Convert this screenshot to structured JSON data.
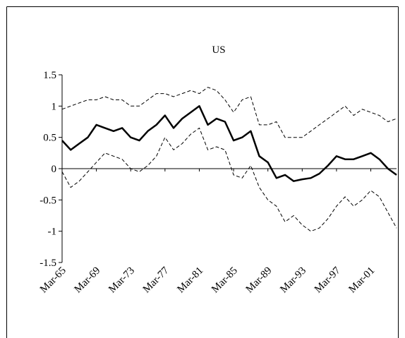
{
  "chart_data": {
    "type": "line",
    "title": "US",
    "categories": [
      "Mar-65",
      null,
      null,
      null,
      "Mar-69",
      null,
      null,
      null,
      "Mar-73",
      null,
      null,
      null,
      "Mar-77",
      null,
      null,
      null,
      "Mar-81",
      null,
      null,
      null,
      "Mar-85",
      null,
      null,
      null,
      "Mar-89",
      null,
      null,
      null,
      "Mar-93",
      null,
      null,
      null,
      "Mar-97",
      null,
      null,
      null,
      "Mar-01",
      null,
      null,
      null
    ],
    "series": [
      {
        "color": "#000000",
        "dash": false,
        "line_width": 2.5,
        "values": [
          0.45,
          0.3,
          0.4,
          0.5,
          0.7,
          0.65,
          0.6,
          0.65,
          0.5,
          0.45,
          0.6,
          0.7,
          0.85,
          0.65,
          0.8,
          0.9,
          1.0,
          0.7,
          0.8,
          0.75,
          0.45,
          0.5,
          0.6,
          0.2,
          0.1,
          -0.15,
          -0.1,
          -0.2,
          -0.17,
          -0.15,
          -0.08,
          0.05,
          0.2,
          0.15,
          0.15,
          0.2,
          0.25,
          0.15,
          0.0,
          -0.1
        ]
      },
      {
        "color": "#000000",
        "dash": true,
        "line_width": 1,
        "values": [
          0.95,
          1.0,
          1.05,
          1.1,
          1.1,
          1.15,
          1.1,
          1.1,
          1.0,
          1.0,
          1.1,
          1.2,
          1.2,
          1.15,
          1.2,
          1.25,
          1.2,
          1.3,
          1.25,
          1.1,
          0.9,
          1.1,
          1.15,
          0.7,
          0.7,
          0.75,
          0.5,
          0.5,
          0.5,
          0.6,
          0.7,
          0.8,
          0.9,
          1.0,
          0.85,
          0.95,
          0.9,
          0.85,
          0.75,
          0.8
        ]
      },
      {
        "color": "#000000",
        "dash": true,
        "line_width": 1,
        "values": [
          -0.05,
          -0.3,
          -0.2,
          -0.05,
          0.1,
          0.25,
          0.2,
          0.15,
          0.0,
          -0.05,
          0.05,
          0.2,
          0.5,
          0.3,
          0.4,
          0.55,
          0.65,
          0.3,
          0.35,
          0.3,
          -0.1,
          -0.15,
          0.05,
          -0.3,
          -0.5,
          -0.6,
          -0.85,
          -0.75,
          -0.9,
          -1.0,
          -0.95,
          -0.8,
          -0.6,
          -0.45,
          -0.6,
          -0.5,
          -0.35,
          -0.45,
          -0.7,
          -0.95
        ]
      }
    ],
    "ylim": [
      -1.5,
      1.5
    ],
    "yticks": [
      -1.5,
      -1,
      -0.5,
      0,
      0.5,
      1,
      1.5
    ],
    "grid": false
  }
}
